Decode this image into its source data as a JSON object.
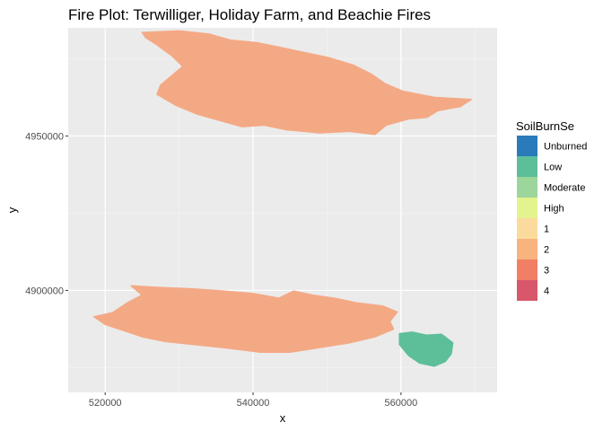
{
  "chart_data": {
    "type": "heatmap",
    "title": "Fire Plot: Terwilliger, Holiday Farm, and Beachie Fires",
    "xlabel": "x",
    "ylabel": "y",
    "xlim": [
      515000,
      573000
    ],
    "ylim": [
      4867000,
      4985000
    ],
    "x_ticks": [
      520000,
      540000,
      560000
    ],
    "x_tick_labels": [
      "520000",
      "540000",
      "560000"
    ],
    "y_ticks": [
      4900000,
      4950000
    ],
    "y_tick_labels": [
      "4900000",
      "4950000"
    ],
    "grid": true,
    "legend": {
      "title": "SoilBurnSe",
      "position": "right",
      "entries": [
        {
          "label": "Unburned",
          "color": "#2B7BBA"
        },
        {
          "label": "Low",
          "color": "#5DBF9A"
        },
        {
          "label": "Moderate",
          "color": "#9DD69B"
        },
        {
          "label": "High",
          "color": "#E3F38E"
        },
        {
          "label": "1",
          "color": "#FBDB9D"
        },
        {
          "label": "2",
          "color": "#F8B37E"
        },
        {
          "label": "3",
          "color": "#F07F65"
        },
        {
          "label": "4",
          "color": "#D8576B"
        }
      ]
    },
    "fires": [
      {
        "fill": "#F4A985",
        "outline": [
          [
            525000,
            4983500
          ],
          [
            530000,
            4984000
          ],
          [
            534000,
            4983000
          ],
          [
            537000,
            4981000
          ],
          [
            540500,
            4980200
          ],
          [
            543000,
            4979000
          ],
          [
            546000,
            4977500
          ],
          [
            550000,
            4975500
          ],
          [
            553500,
            4973000
          ],
          [
            556000,
            4970000
          ],
          [
            557800,
            4967000
          ],
          [
            560200,
            4964500
          ],
          [
            564500,
            4962500
          ],
          [
            569500,
            4961800
          ],
          [
            568000,
            4959500
          ],
          [
            565000,
            4958200
          ],
          [
            563500,
            4956000
          ],
          [
            561000,
            4955500
          ],
          [
            558000,
            4953500
          ],
          [
            556500,
            4950500
          ],
          [
            553000,
            4951500
          ],
          [
            549000,
            4951000
          ],
          [
            544500,
            4952000
          ],
          [
            541500,
            4953500
          ],
          [
            538500,
            4953000
          ],
          [
            535500,
            4955000
          ],
          [
            532500,
            4957000
          ],
          [
            529500,
            4960000
          ],
          [
            527000,
            4963500
          ],
          [
            527500,
            4966500
          ],
          [
            529000,
            4969500
          ],
          [
            530500,
            4972500
          ],
          [
            529000,
            4976000
          ],
          [
            527000,
            4979500
          ],
          [
            525500,
            4981800
          ]
        ]
      },
      {
        "fill": "#F4A985",
        "outline": [
          [
            518500,
            4891500
          ],
          [
            521000,
            4892800
          ],
          [
            523000,
            4896000
          ],
          [
            525000,
            4898500
          ],
          [
            523500,
            4901500
          ],
          [
            527000,
            4901000
          ],
          [
            532000,
            4900500
          ],
          [
            536000,
            4899800
          ],
          [
            540000,
            4899000
          ],
          [
            543500,
            4897500
          ],
          [
            545500,
            4899800
          ],
          [
            548000,
            4898500
          ],
          [
            551000,
            4897500
          ],
          [
            554000,
            4896000
          ],
          [
            557500,
            4895000
          ],
          [
            559500,
            4893000
          ],
          [
            558500,
            4890000
          ],
          [
            559000,
            4887500
          ],
          [
            556500,
            4885000
          ],
          [
            553000,
            4883000
          ],
          [
            549000,
            4881500
          ],
          [
            545000,
            4880000
          ],
          [
            541000,
            4880000
          ],
          [
            536000,
            4881500
          ],
          [
            532000,
            4882500
          ],
          [
            528000,
            4883500
          ],
          [
            525000,
            4885000
          ],
          [
            522500,
            4887000
          ],
          [
            520000,
            4889000
          ]
        ]
      },
      {
        "fill": "#5DBF9A",
        "outline": [
          [
            559800,
            4886000
          ],
          [
            561500,
            4886500
          ],
          [
            563500,
            4885500
          ],
          [
            565500,
            4885800
          ],
          [
            567000,
            4883000
          ],
          [
            566800,
            4879500
          ],
          [
            566000,
            4877000
          ],
          [
            564500,
            4875500
          ],
          [
            562500,
            4876500
          ],
          [
            561000,
            4879000
          ],
          [
            559800,
            4882500
          ]
        ]
      }
    ]
  }
}
